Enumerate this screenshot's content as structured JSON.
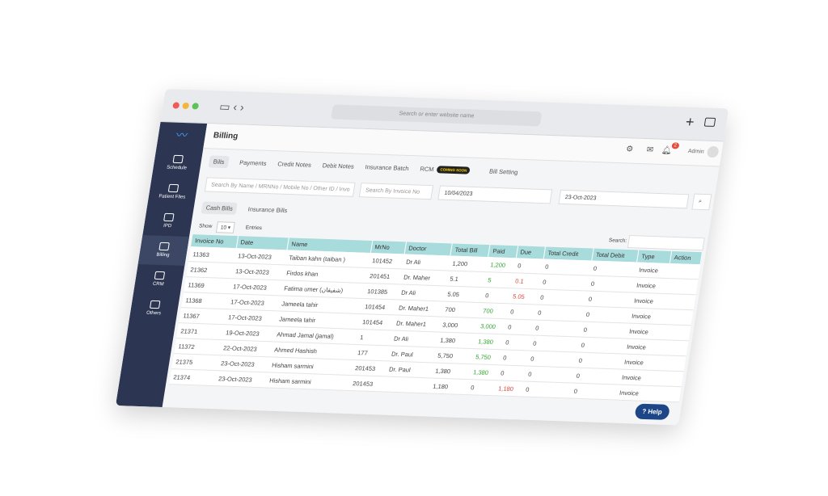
{
  "browser": {
    "address_placeholder": "Search or enter website name"
  },
  "header": {
    "title": "Billing",
    "user": "Admin",
    "notification_count": "2"
  },
  "sidebar": [
    "Schedule",
    "Patient Files",
    "IPD",
    "Billing",
    "CRM",
    "Others"
  ],
  "tabs": {
    "items": [
      "Bills",
      "Payments",
      "Credit Notes",
      "Debit Notes",
      "Insurance Batch",
      "RCM"
    ],
    "badge": "COMING SOON",
    "setting": "Bill Setting"
  },
  "filters": {
    "search_name": "Search By Name / MRNNo / Mobile No / Other ID / Invo",
    "search_invoice": "Search By Invoice No",
    "date_from": "10/04/2023",
    "date_to": "23-Oct-2023"
  },
  "subtabs": [
    "Cash Bills",
    "Insurance Bills"
  ],
  "controls": {
    "show": "Show",
    "page_size": "10",
    "entries": "Entries",
    "search": "Search:"
  },
  "table": {
    "columns": [
      "Invoice No",
      "Date",
      "Name",
      "MrNo",
      "Doctor",
      "Total Bill",
      "Paid",
      "Due",
      "Total Credit",
      "Total Debit",
      "Type",
      "Action"
    ],
    "rows": [
      [
        "11363",
        "13-Oct-2023",
        "Taiban kahn (taiban )",
        "101452",
        "Dr Ali",
        "1,200",
        "1,200",
        "0",
        "0",
        "0",
        "Invoice"
      ],
      [
        "21362",
        "13-Oct-2023",
        "Firdos khan",
        "201451",
        "Dr. Maher",
        "5.1",
        "5",
        "0.1",
        "0",
        "0",
        "Invoice"
      ],
      [
        "11369",
        "17-Oct-2023",
        "Fatima umer (شفیقان)",
        "101385",
        "Dr Ali",
        "5.05",
        "0",
        "5.05",
        "0",
        "0",
        "Invoice"
      ],
      [
        "11368",
        "17-Oct-2023",
        "Jameela tahir",
        "101454",
        "Dr. Maher1",
        "700",
        "700",
        "0",
        "0",
        "0",
        "Invoice"
      ],
      [
        "11367",
        "17-Oct-2023",
        "Jameela tahir",
        "101454",
        "Dr. Maher1",
        "3,000",
        "3,000",
        "0",
        "0",
        "0",
        "Invoice"
      ],
      [
        "21371",
        "19-Oct-2023",
        "Ahmad Jamal (jamal)",
        "1",
        "Dr Ali",
        "1,380",
        "1,380",
        "0",
        "0",
        "0",
        "Invoice"
      ],
      [
        "11372",
        "22-Oct-2023",
        "Ahmed Hashish",
        "177",
        "Dr. Paul",
        "5,750",
        "5,750",
        "0",
        "0",
        "0",
        "Invoice"
      ],
      [
        "21375",
        "23-Oct-2023",
        "Hisham sarmini",
        "201453",
        "Dr. Paul",
        "1,380",
        "1,380",
        "0",
        "0",
        "0",
        "Invoice"
      ],
      [
        "21374",
        "23-Oct-2023",
        "Hisham sarmini",
        "201453",
        null,
        "1,180",
        "0",
        "1,180",
        "0",
        "0",
        "Invoice"
      ]
    ]
  },
  "help": "Help"
}
